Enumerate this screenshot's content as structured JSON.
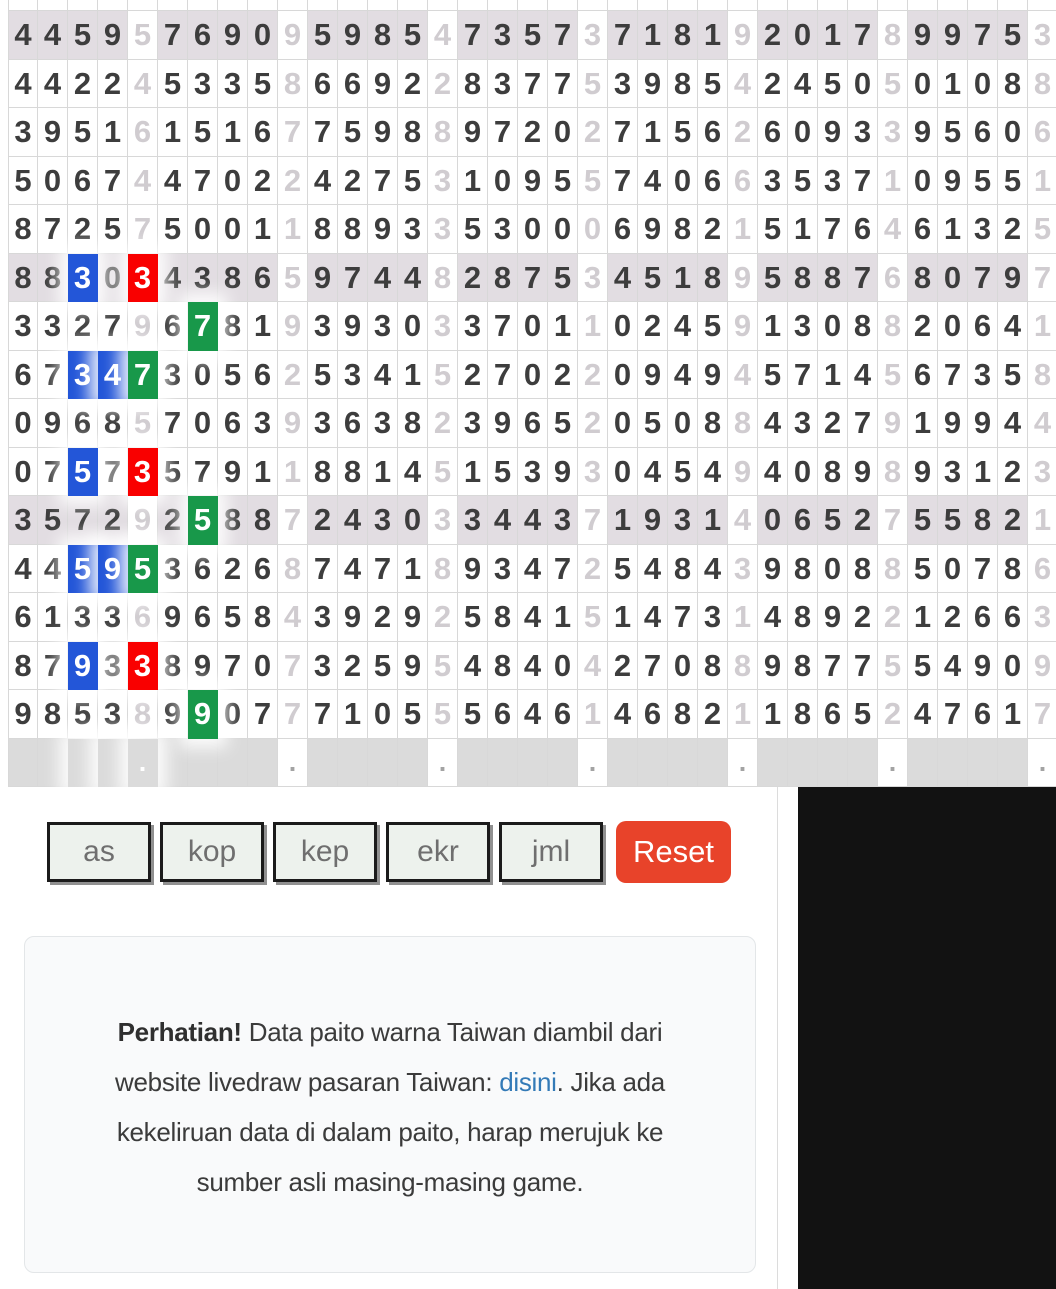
{
  "grid": {
    "cols": 35,
    "cols_per_group": 5,
    "rows": [
      {
        "shaded": true,
        "digits": "44595769095985473573718192017899753"
      },
      {
        "shaded": false,
        "digits": "44224533586692283775398542450501088"
      },
      {
        "shaded": false,
        "digits": "39516151677598897202715626093395606"
      },
      {
        "shaded": false,
        "digits": "50674470224275310955740663537109551"
      },
      {
        "shaded": false,
        "digits": "87257500118893353000698215176461325"
      },
      {
        "shaded": true,
        "digits": "88303438659744828753451895887680797"
      },
      {
        "shaded": false,
        "digits": "33279678193930337011024591308820641"
      },
      {
        "shaded": false,
        "digits": "67347305625341527022094945714567358"
      },
      {
        "shaded": false,
        "digits": "09685706393638239652050884327919944"
      },
      {
        "shaded": false,
        "digits": "07573579118814515393045494089893123"
      },
      {
        "shaded": true,
        "digits": "35729258872430334437193140652755821"
      },
      {
        "shaded": false,
        "digits": "44595362687471893472548439808850786"
      },
      {
        "shaded": false,
        "digits": "61336965843929258415147314892212663"
      },
      {
        "shaded": false,
        "digits": "87933897073259548404270889877554909"
      },
      {
        "shaded": false,
        "digits": "98538990777105556461468211865247617"
      }
    ],
    "highlights": [
      {
        "row": 5,
        "col": 2,
        "color": "blue"
      },
      {
        "row": 5,
        "col": 4,
        "color": "red"
      },
      {
        "row": 6,
        "col": 6,
        "color": "green"
      },
      {
        "row": 7,
        "col": 2,
        "color": "blue"
      },
      {
        "row": 7,
        "col": 3,
        "color": "blue"
      },
      {
        "row": 7,
        "col": 4,
        "color": "green"
      },
      {
        "row": 9,
        "col": 2,
        "color": "blue"
      },
      {
        "row": 9,
        "col": 4,
        "color": "red"
      },
      {
        "row": 10,
        "col": 6,
        "color": "green"
      },
      {
        "row": 11,
        "col": 2,
        "color": "blue"
      },
      {
        "row": 11,
        "col": 3,
        "color": "blue"
      },
      {
        "row": 11,
        "col": 4,
        "color": "green"
      },
      {
        "row": 13,
        "col": 2,
        "color": "blue"
      },
      {
        "row": 13,
        "col": 4,
        "color": "red"
      },
      {
        "row": 14,
        "col": 6,
        "color": "green"
      }
    ],
    "footer": {
      "blue_cols": [
        2,
        3
      ],
      "green_col": 4,
      "green_dot": ".",
      "dot_cols": [
        9,
        14,
        19,
        24,
        29,
        34
      ],
      "dot": "."
    }
  },
  "toolbar": {
    "buttons": [
      "as",
      "kop",
      "kep",
      "ekr",
      "jml"
    ],
    "reset_label": "Reset"
  },
  "notice": {
    "warning_label": "Perhatian!",
    "text_before_link": " Data paito warna Taiwan diambil dari website livedraw pasaran Taiwan: ",
    "link_label": "disini",
    "text_after_link": ". Jika ada kekeliruan data di dalam paito, harap merujuk ke sumber asli masing-masing game."
  },
  "colors": {
    "highlight_blue": "#2356d8",
    "highlight_red": "#f90000",
    "highlight_green": "#18984a",
    "shaded_row_bg": "#e2dde2",
    "footer_bg": "#dbdbdb",
    "reset_button_bg": "#e8432a",
    "link_color": "#337ab7",
    "dark_digit": "#3d3d3d",
    "light_digit": "#d0ccd0"
  }
}
